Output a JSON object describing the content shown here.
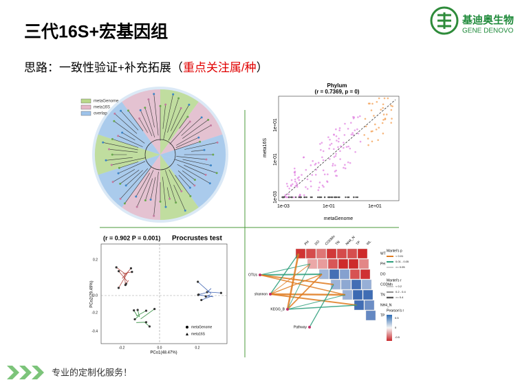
{
  "header": {
    "title": "三代16S+宏基因组",
    "subtitle_prefix": "思路：一致性验证+补充拓展（",
    "subtitle_highlight": "重点关注属/种",
    "subtitle_suffix": "）"
  },
  "logo": {
    "name": "基迪奥生物",
    "english": "GENE DENOVO"
  },
  "figures": {
    "tree": {
      "legend": [
        "metaGenome",
        "meta16S",
        "overlap"
      ]
    },
    "scatter": {
      "title": "Phylum",
      "stat": "(r = 0.7369, p = 0)",
      "x_label": "metaGenome",
      "y_label": "meta16S",
      "x_ticks": [
        "1e-03",
        "1e-01",
        "1e+01"
      ],
      "y_ticks": [
        "1e-03",
        "1e-01",
        "1e+01"
      ]
    },
    "procrustes": {
      "stat": "(r = 0.902   P = 0.001)",
      "title": "Procrustes test",
      "x_label": "PCo1(48.47%)",
      "y_label": "PCo2(29.49%)",
      "x_ticks": [
        "-0.2",
        "0.0",
        "0.2"
      ],
      "y_ticks": [
        "0.2",
        "0.0",
        "-0.2",
        "-0.4"
      ],
      "legend": [
        "metaGenome",
        "meta16S"
      ]
    },
    "mantel": {
      "columns": [
        "PH",
        "DO",
        "CODMn",
        "TN",
        "NH4_N",
        "TP",
        "WL"
      ],
      "rows": [
        "WT",
        "PH",
        "DO",
        "CODMn",
        "TN",
        "NH4_N",
        "TP"
      ],
      "nodes": [
        "OTUs",
        "shannon",
        "KEGG_B",
        "Pathway"
      ],
      "p_title": "Mantel's p",
      "p_items": [
        "< 0.01",
        "0.01 - 0.05",
        ">= 0.05"
      ],
      "r_title": "Mantel's r",
      "r_items": [
        "< 0.2",
        "0.2 - 0.4",
        ">= 0.4"
      ],
      "pearson_title": "Pearson's r",
      "pearson_items": [
        "0.5",
        "0",
        "-0.5"
      ]
    }
  },
  "footer": {
    "slogan": "专业的定制化服务！"
  }
}
